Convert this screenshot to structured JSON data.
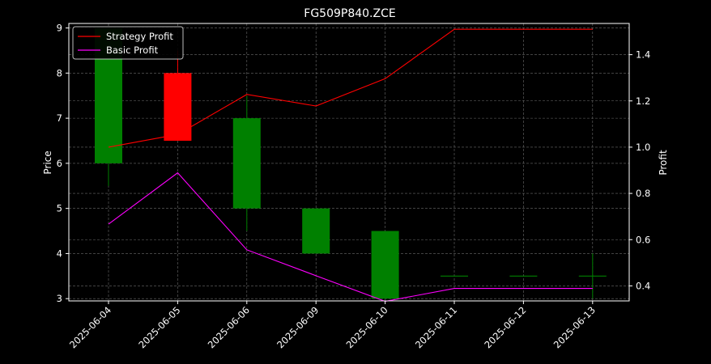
{
  "chart_data": {
    "type": "candlestick+line",
    "title": "FG509P840.ZCE",
    "xlabel": "",
    "ylabel_left": "Price",
    "ylabel_right": "Profit",
    "categories": [
      "2025-06-04",
      "2025-06-05",
      "2025-06-06",
      "2025-06-09",
      "2025-06-10",
      "2025-06-11",
      "2025-06-12",
      "2025-06-13"
    ],
    "ylim_left": [
      2.95,
      9.1
    ],
    "yticks_left": [
      3,
      4,
      5,
      6,
      7,
      8,
      9
    ],
    "ylim_right": [
      0.335,
      1.535
    ],
    "yticks_right": [
      0.4,
      0.6,
      0.8,
      1.0,
      1.2,
      1.4
    ],
    "grid": true,
    "legend_position": "top-left",
    "candles": [
      {
        "open": 6.0,
        "high": 9.0,
        "low": 5.5,
        "close": 9.0
      },
      {
        "open": 8.0,
        "high": 8.5,
        "low": 6.5,
        "close": 6.5
      },
      {
        "open": 5.0,
        "high": 7.5,
        "low": 4.5,
        "close": 7.0
      },
      {
        "open": 4.0,
        "high": 5.0,
        "low": 4.0,
        "close": 5.0
      },
      {
        "open": 3.0,
        "high": 4.5,
        "low": 3.0,
        "close": 4.5
      },
      {
        "open": 3.5,
        "high": 3.5,
        "low": 3.5,
        "close": 3.5
      },
      {
        "open": 3.5,
        "high": 3.5,
        "low": 3.5,
        "close": 3.5
      },
      {
        "open": 3.5,
        "high": 4.0,
        "low": 3.0,
        "close": 3.5
      }
    ],
    "series": [
      {
        "name": "Strategy Profit",
        "color": "#ff0000",
        "values": [
          1.0,
          1.055,
          1.228,
          1.178,
          1.296,
          1.51,
          1.51,
          1.51
        ]
      },
      {
        "name": "Basic Profit",
        "color": "#ff00ff",
        "values": [
          0.667,
          0.889,
          0.556,
          0.444,
          0.333,
          0.389,
          0.389,
          0.389
        ]
      }
    ],
    "colors": {
      "up": "#008000",
      "down": "#ff0000",
      "grid": "#6b6b6b",
      "axes": "#ffffff"
    }
  }
}
